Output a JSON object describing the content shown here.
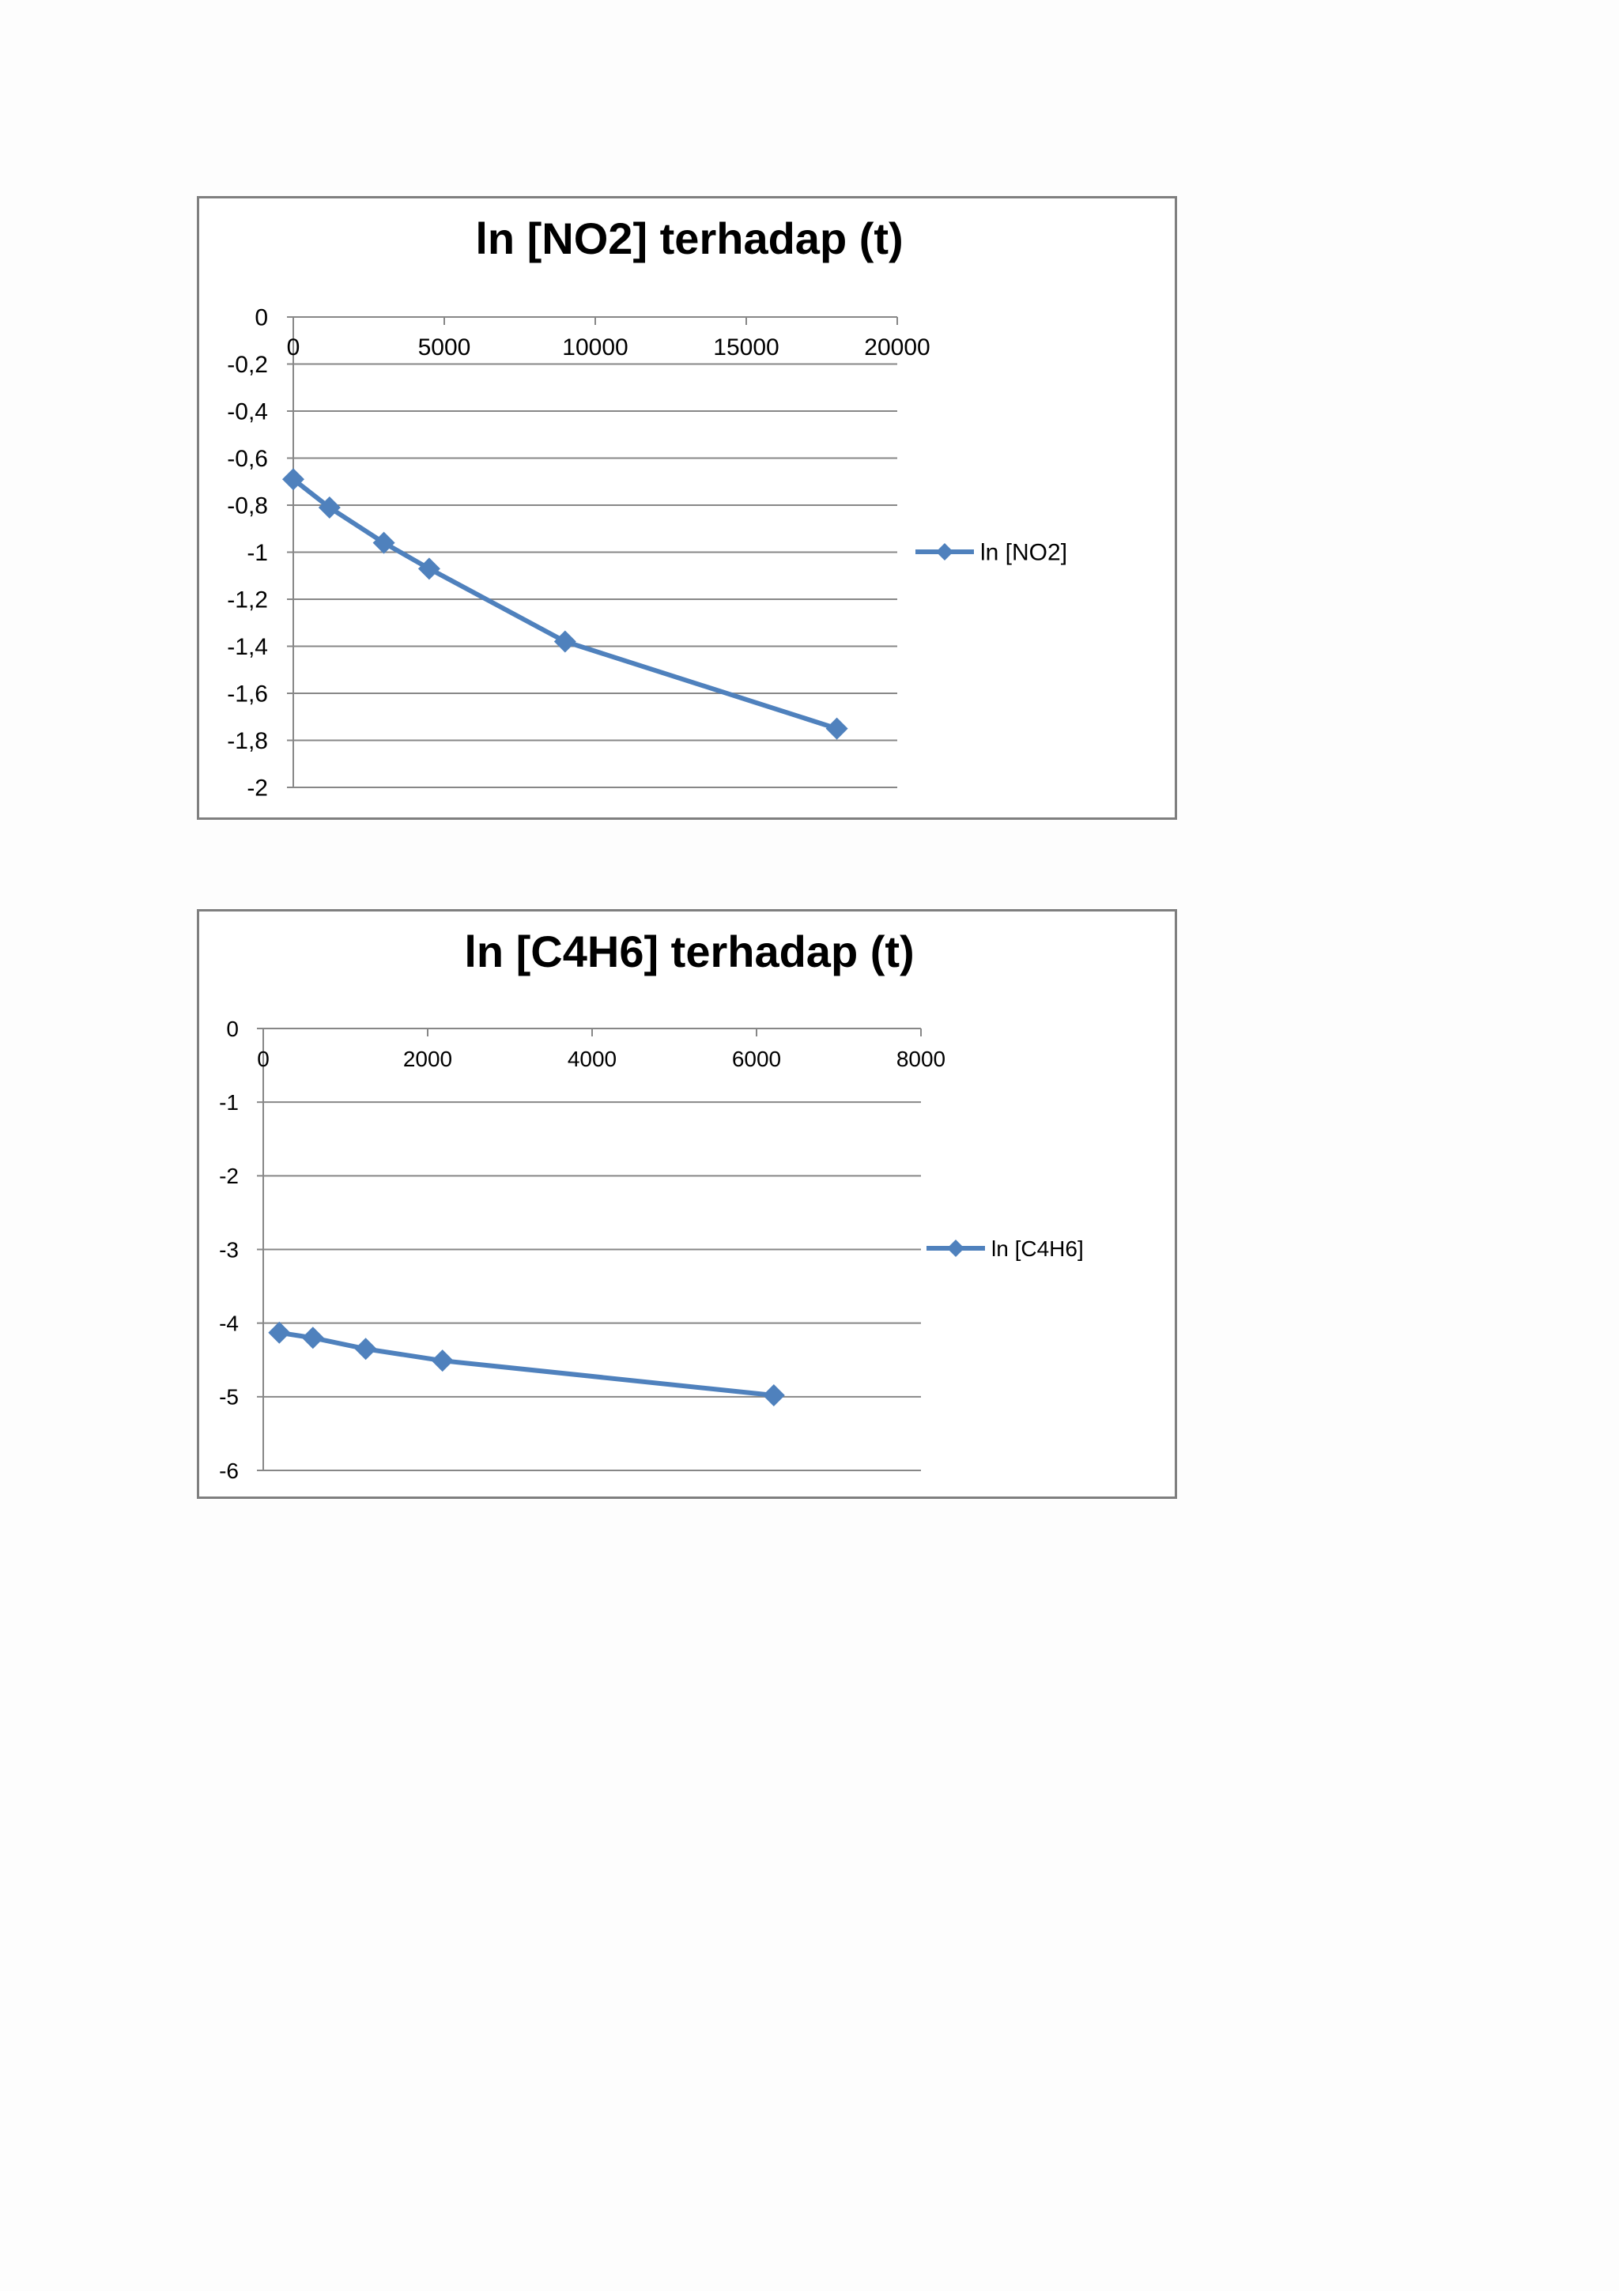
{
  "chart_data": [
    {
      "type": "line",
      "title": "ln [NO2] terhadap (t)",
      "xlabel": "",
      "ylabel": "",
      "xlim": [
        0,
        20000
      ],
      "ylim": [
        -2,
        0
      ],
      "xticks": [
        0,
        5000,
        10000,
        15000,
        20000
      ],
      "xtick_labels": [
        "0",
        "5000",
        "10000",
        "15000",
        "20000"
      ],
      "yticks": [
        0,
        -0.2,
        -0.4,
        -0.6,
        -0.8,
        -1,
        -1.2,
        -1.4,
        -1.6,
        -1.8,
        -2
      ],
      "ytick_labels": [
        "0",
        "-0,2",
        "-0,4",
        "-0,6",
        "-0,8",
        "-1",
        "-1,2",
        "-1,4",
        "-1,6",
        "-1,8",
        "-2"
      ],
      "grid": true,
      "legend_position": "right",
      "series": [
        {
          "name": "ln [NO2]",
          "color": "#4f81bd",
          "marker": "diamond",
          "x": [
            0,
            1200,
            3000,
            4500,
            9000,
            18000
          ],
          "y": [
            -0.69,
            -0.81,
            -0.96,
            -1.07,
            -1.38,
            -1.75
          ]
        }
      ]
    },
    {
      "type": "line",
      "title": "ln [C4H6] terhadap (t)",
      "xlabel": "",
      "ylabel": "",
      "xlim": [
        0,
        8000
      ],
      "ylim": [
        -6,
        0
      ],
      "xticks": [
        0,
        2000,
        4000,
        6000,
        8000
      ],
      "xtick_labels": [
        "0",
        "2000",
        "4000",
        "6000",
        "8000"
      ],
      "yticks": [
        0,
        -1,
        -2,
        -3,
        -4,
        -5,
        -6
      ],
      "ytick_labels": [
        "0",
        "-1",
        "-2",
        "-3",
        "-4",
        "-5",
        "-6"
      ],
      "grid": true,
      "legend_position": "right",
      "series": [
        {
          "name": "ln [C4H6]",
          "color": "#4f81bd",
          "marker": "diamond",
          "x": [
            195,
            604,
            1246,
            2180,
            6210
          ],
          "y": [
            -4.13,
            -4.2,
            -4.35,
            -4.51,
            -4.98
          ]
        }
      ]
    }
  ]
}
